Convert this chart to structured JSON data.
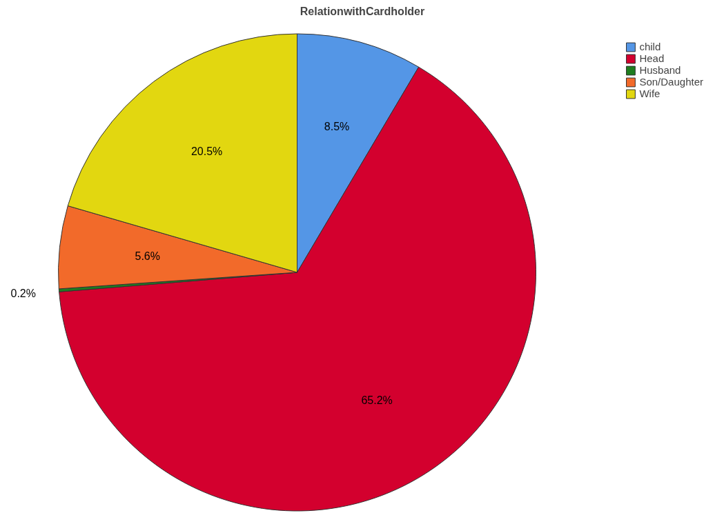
{
  "chart_data": {
    "type": "pie",
    "title": "RelationwithCardholder",
    "categories": [
      "child",
      "Head",
      "Husband",
      "Son/Daughter",
      "Wife"
    ],
    "values": [
      8.5,
      65.2,
      0.2,
      5.6,
      20.5
    ],
    "colors": [
      "#5496e6",
      "#d3002e",
      "#1f7d1f",
      "#f26a2a",
      "#e2d710"
    ],
    "value_labels": [
      "8.5%",
      "65.2%",
      "0.2%",
      "5.6%",
      "20.5%"
    ],
    "legend": "top right"
  }
}
